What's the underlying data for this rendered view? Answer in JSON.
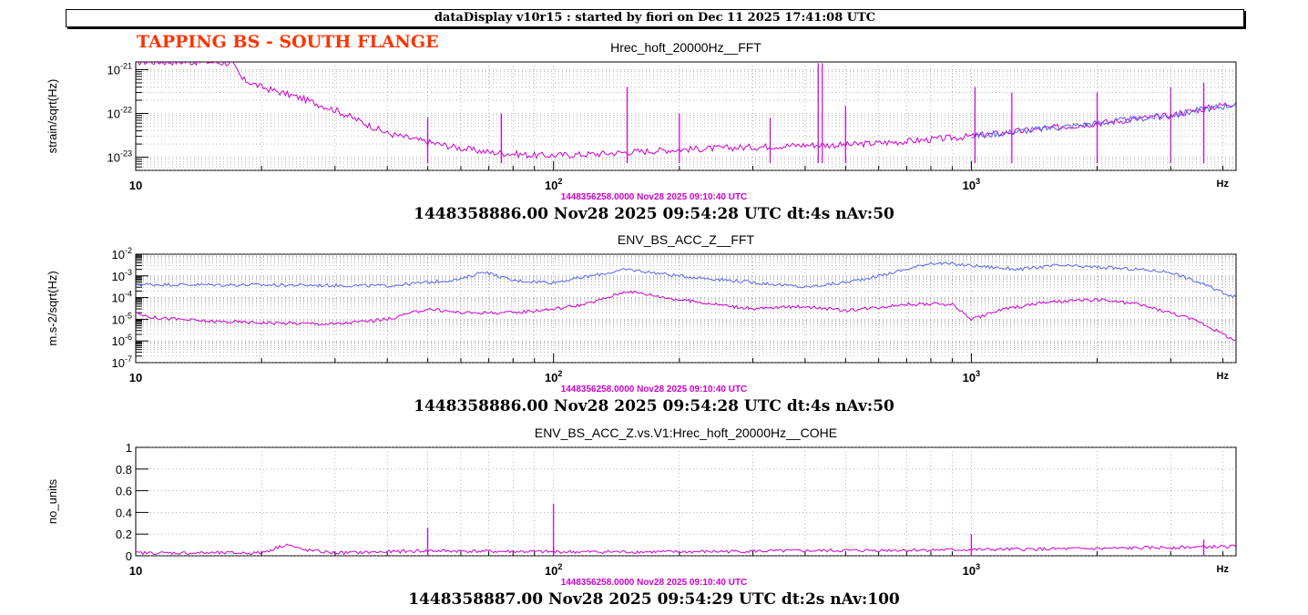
{
  "header": {
    "banner": "dataDisplay v10r15 : started by fiori on Dec 11 2025 17:41:08 UTC",
    "sticker": "TAPPING BS - SOUTH FLANGE"
  },
  "colors": {
    "reference": "#cc00cc",
    "current": "#5566ee",
    "grid": "#888888"
  },
  "chart_data": [
    {
      "type": "line",
      "title": "Hrec_hoft_20000Hz__FFT",
      "ylabel": "strain/sqrt(Hz)",
      "xunit": "Hz",
      "xscale": "log",
      "yscale": "log",
      "xlim": [
        10,
        4300
      ],
      "ylim": [
        5e-24,
        1.5e-21
      ],
      "grid": true,
      "x_ticks": [
        "10",
        "10^2",
        "10^3"
      ],
      "y_ticks": [
        "10^-23",
        "10^-22",
        "10^-21"
      ],
      "reference_label": "1448356258.0000 Nov28 2025 09:10:40 UTC",
      "timestamp": "1448358886.00 Nov28 2025 09:54:28 UTC dt:4s nAv:50",
      "series": [
        {
          "style": "reference",
          "color": "#cc00cc",
          "x": [
            10,
            12,
            15,
            17,
            18,
            20,
            25,
            30,
            40,
            50,
            60,
            70,
            80,
            90,
            100,
            130,
            150,
            200,
            300,
            400,
            500,
            700,
            1000,
            1500,
            2000,
            3000,
            4300
          ],
          "y": [
            1.5e-21,
            1.5e-21,
            1.5e-21,
            1.4e-21,
            6e-22,
            4e-22,
            2.2e-22,
            1.2e-22,
            3.5e-23,
            2.2e-23,
            1.6e-23,
            1.3e-23,
            1.2e-23,
            1.1e-23,
            1.1e-23,
            1.2e-23,
            1.3e-23,
            1.5e-23,
            1.7e-23,
            1.9e-23,
            1.9e-23,
            2.3e-23,
            3e-23,
            4.5e-23,
            6e-23,
            9e-23,
            1.8e-22
          ]
        },
        {
          "style": "current",
          "color": "#5566ee",
          "x": [
            1000,
            1500,
            2000,
            3000,
            3500,
            4300
          ],
          "y": [
            3e-23,
            4.5e-23,
            6e-23,
            9e-23,
            1.2e-22,
            1.6e-22
          ]
        }
      ],
      "peaks": [
        {
          "x": 50,
          "y": 8e-23
        },
        {
          "x": 75,
          "y": 1e-22
        },
        {
          "x": 150,
          "y": 4e-22
        },
        {
          "x": 200,
          "y": 1e-22
        },
        {
          "x": 330,
          "y": 8e-23
        },
        {
          "x": 430,
          "y": 1.4e-21
        },
        {
          "x": 440,
          "y": 1.4e-21
        },
        {
          "x": 500,
          "y": 1.5e-22
        },
        {
          "x": 1020,
          "y": 4e-22
        },
        {
          "x": 1250,
          "y": 3e-22
        },
        {
          "x": 2000,
          "y": 3e-22
        },
        {
          "x": 3000,
          "y": 4e-22
        },
        {
          "x": 3600,
          "y": 5e-22
        }
      ]
    },
    {
      "type": "line",
      "title": "ENV_BS_ACC_Z__FFT",
      "ylabel": "m.s-2/sqrt(Hz)",
      "xunit": "Hz",
      "xscale": "log",
      "yscale": "log",
      "xlim": [
        10,
        4300
      ],
      "ylim": [
        1e-07,
        0.01
      ],
      "grid": true,
      "x_ticks": [
        "10",
        "10^2",
        "10^3"
      ],
      "y_ticks": [
        "10^-7",
        "10^-6",
        "10^-5",
        "10^-4",
        "10^-3",
        "10^-2"
      ],
      "reference_label": "1448356258.0000 Nov28 2025 09:10:40 UTC",
      "timestamp": "1448358886.00 Nov28 2025 09:54:28 UTC dt:4s nAv:50",
      "series": [
        {
          "style": "current",
          "color": "#5566ee",
          "x": [
            10,
            20,
            40,
            50,
            60,
            68,
            80,
            100,
            130,
            150,
            200,
            300,
            400,
            500,
            600,
            700,
            800,
            1000,
            1300,
            1600,
            2000,
            2500,
            3000,
            3500,
            4300
          ],
          "y": [
            0.0004,
            0.00038,
            0.00035,
            0.0005,
            0.0007,
            0.0016,
            0.0006,
            0.0005,
            0.0012,
            0.002,
            0.001,
            0.0005,
            0.0003,
            0.0005,
            0.001,
            0.002,
            0.004,
            0.003,
            0.002,
            0.003,
            0.0025,
            0.002,
            0.0015,
            0.0005,
            0.0001
          ]
        },
        {
          "style": "reference",
          "color": "#cc00cc",
          "x": [
            10,
            11,
            15,
            20,
            30,
            40,
            50,
            60,
            80,
            100,
            120,
            150,
            200,
            300,
            400,
            500,
            700,
            900,
            1000,
            1200,
            1500,
            2000,
            2500,
            3000,
            3500,
            4300
          ],
          "y": [
            2e-05,
            1.2e-05,
            8e-06,
            7e-06,
            6e-06,
            1e-05,
            3e-05,
            2e-05,
            2e-05,
            3e-05,
            5e-05,
            0.0002,
            8e-05,
            3e-05,
            4e-05,
            2.5e-05,
            5e-05,
            5e-05,
            1e-05,
            3e-05,
            6e-05,
            8e-05,
            5e-05,
            2e-05,
            8e-06,
            1e-06
          ]
        }
      ]
    },
    {
      "type": "line",
      "title": "ENV_BS_ACC_Z.vs.V1:Hrec_hoft_20000Hz__COHE",
      "ylabel": "no_units",
      "xunit": "Hz",
      "xscale": "log",
      "yscale": "linear",
      "xlim": [
        10,
        4300
      ],
      "ylim": [
        0,
        1
      ],
      "grid": true,
      "x_ticks": [
        "10",
        "10^2",
        "10^3"
      ],
      "y_ticks": [
        "0",
        "0.2",
        "0.4",
        "0.6",
        "0.8",
        "1"
      ],
      "reference_label": "1448356258.0000 Nov28 2025 09:10:40 UTC",
      "timestamp": "1448358887.00 Nov28 2025 09:54:29 UTC dt:2s nAv:100",
      "series": [
        {
          "style": "reference",
          "color": "#cc00cc",
          "x": [
            10,
            20,
            23,
            25,
            30,
            40,
            50,
            100,
            200,
            400,
            1000,
            2000,
            4300
          ],
          "y": [
            0.02,
            0.02,
            0.1,
            0.05,
            0.02,
            0.03,
            0.04,
            0.03,
            0.03,
            0.04,
            0.05,
            0.06,
            0.08
          ]
        }
      ],
      "peaks": [
        {
          "x": 50,
          "y": 0.26
        },
        {
          "x": 100,
          "y": 0.48
        },
        {
          "x": 1000,
          "y": 0.2
        },
        {
          "x": 3600,
          "y": 0.15
        }
      ]
    }
  ]
}
